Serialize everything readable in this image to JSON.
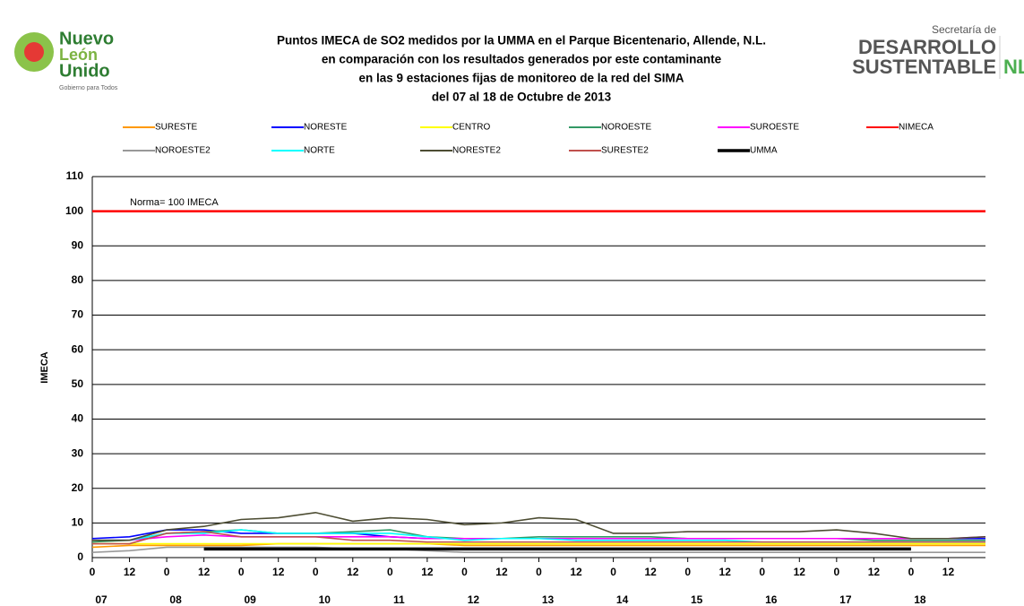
{
  "logos": {
    "left": [
      "Nuevo",
      "León",
      "Unido",
      "Gobierno para Todos"
    ],
    "right": [
      "Secretaría de",
      "DESARROLLO",
      "SUSTENTABLE",
      "NL"
    ]
  },
  "chart_data": {
    "type": "line",
    "title": [
      "Puntos IMECA de SO2 medidos por la UMMA en el Parque Bicentenario, Allende, N.L.",
      "en comparación con los resultados generados por este contaminante",
      "en las 9 estaciones fijas de monitoreo de la red del SIMA",
      "del 07 al 18 de Octubre de 2013"
    ],
    "y_label": "IMECA",
    "annotation": "Norma= 100 IMECA",
    "x": [
      0,
      12,
      24,
      36,
      48,
      60,
      72,
      84,
      96,
      108,
      120,
      132,
      144,
      156,
      168,
      180,
      192,
      204,
      216,
      228,
      240,
      252,
      264,
      276,
      288
    ],
    "xlim": [
      0,
      288
    ],
    "xticks": [
      {
        "value": 0,
        "label": "0"
      },
      12,
      {
        "value": 24,
        "label": "0"
      },
      {
        "value": 36,
        "label": "12"
      },
      {
        "value": 48,
        "label": "0"
      },
      {
        "value": 60,
        "label": "12"
      },
      {
        "value": 72,
        "label": "0"
      },
      {
        "value": 84,
        "label": "12"
      },
      {
        "value": 96,
        "label": "0"
      },
      {
        "value": 108,
        "label": "12"
      },
      {
        "value": 120,
        "label": "0"
      },
      {
        "value": 132,
        "label": "12"
      },
      {
        "value": 144,
        "label": "0"
      },
      {
        "value": 156,
        "label": "12"
      },
      {
        "value": 168,
        "label": "0"
      },
      {
        "value": 180,
        "label": "12"
      },
      {
        "value": 192,
        "label": "0"
      },
      {
        "value": 204,
        "label": "12"
      },
      {
        "value": 216,
        "label": "0"
      },
      {
        "value": 228,
        "label": "12"
      },
      {
        "value": 240,
        "label": "0"
      },
      {
        "value": 252,
        "label": "12"
      },
      {
        "value": 264,
        "label": "0"
      },
      {
        "value": 276,
        "label": "12"
      }
    ],
    "day_labels": [
      {
        "value": 0,
        "label": "07"
      },
      {
        "value": 24,
        "label": "08"
      },
      {
        "value": 48,
        "label": "09"
      },
      {
        "value": 72,
        "label": "10"
      },
      {
        "value": 96,
        "label": "11"
      },
      {
        "value": 120,
        "label": "12"
      },
      {
        "value": 144,
        "label": "13"
      },
      {
        "value": 168,
        "label": "14"
      },
      {
        "value": 192,
        "label": "15"
      },
      {
        "value": 216,
        "label": "16"
      },
      {
        "value": 240,
        "label": "17"
      },
      {
        "value": 264,
        "label": "18"
      }
    ],
    "ylim": [
      0,
      110
    ],
    "yticks": [
      0,
      10,
      20,
      30,
      40,
      50,
      60,
      70,
      80,
      90,
      100,
      110
    ],
    "grid": true,
    "series": [
      {
        "name": "SURESTE",
        "color": "#ff9900",
        "values": [
          3,
          3.5,
          3.5,
          3.5,
          3.5,
          4,
          4,
          4,
          4,
          4,
          3.5,
          3.5,
          3.5,
          3.5,
          3.5,
          3.5,
          3.5,
          3.5,
          3.5,
          3.5,
          3.5,
          3.5,
          3.5,
          3.5,
          3.5
        ]
      },
      {
        "name": "NORESTE",
        "color": "#0000ff",
        "values": [
          5.5,
          6,
          8,
          8,
          7,
          7,
          7,
          7,
          6,
          5.5,
          5.5,
          5.5,
          5.5,
          5.5,
          5.5,
          5.5,
          5.5,
          5.5,
          5.5,
          5.5,
          5.5,
          5.5,
          5.5,
          5.5,
          5.5
        ]
      },
      {
        "name": "CENTRO",
        "color": "#ffff00",
        "values": [
          4,
          4,
          4,
          4,
          4,
          4,
          4,
          4,
          4,
          4,
          4,
          4,
          4,
          4,
          4,
          4,
          4,
          4,
          4,
          4,
          4,
          4,
          4,
          4,
          4
        ]
      },
      {
        "name": "NOROESTE",
        "color": "#339966",
        "values": [
          4.5,
          5,
          7,
          7.5,
          8,
          7,
          7,
          7.5,
          8,
          6,
          5.5,
          5.5,
          6,
          6,
          6,
          6,
          5.5,
          5.5,
          5.5,
          5.5,
          5.5,
          5,
          5,
          5,
          5
        ]
      },
      {
        "name": "SUROESTE",
        "color": "#ff00ff",
        "values": [
          5,
          5,
          6,
          6.5,
          6,
          6,
          6,
          6,
          6,
          5.5,
          5.5,
          5.5,
          5.5,
          5.5,
          5.5,
          5.5,
          5.5,
          5.5,
          5.5,
          5.5,
          5.5,
          5.5,
          5.5,
          5.5,
          6
        ]
      },
      {
        "name": "NIMECA",
        "color": "#ff0000",
        "values": [
          100,
          100,
          100,
          100,
          100,
          100,
          100,
          100,
          100,
          100,
          100,
          100,
          100,
          100,
          100,
          100,
          100,
          100,
          100,
          100,
          100,
          100,
          100,
          100,
          100
        ]
      },
      {
        "name": "NOROESTE2",
        "color": "#999999",
        "values": [
          1.5,
          2,
          3,
          3,
          3,
          3,
          3,
          2.5,
          2.5,
          2,
          1.5,
          1.5,
          1.5,
          1.5,
          1.5,
          1.5,
          1.5,
          1.5,
          1.5,
          1.5,
          1.5,
          1.5,
          1.5,
          1.5,
          1.5
        ]
      },
      {
        "name": "NORTE",
        "color": "#00ffff",
        "values": [
          5,
          5,
          7,
          7,
          8,
          7,
          7,
          7,
          7,
          6,
          5,
          5.5,
          5.5,
          5,
          5,
          5,
          5,
          5,
          4.5,
          4.5,
          4.5,
          4.5,
          4.5,
          4.5,
          4.5
        ]
      },
      {
        "name": "NORESTE2",
        "color": "#4d4d33",
        "values": [
          5,
          5,
          8,
          9,
          11,
          11.5,
          13,
          10.5,
          11.5,
          11,
          9.5,
          10,
          11.5,
          11,
          7,
          7,
          7.5,
          7.5,
          7.5,
          7.5,
          8,
          7,
          5.5,
          5.5,
          6
        ]
      },
      {
        "name": "SURESTE2",
        "color": "#c0504d",
        "values": [
          4,
          4,
          7,
          7.5,
          6,
          6,
          6,
          5,
          5,
          4.5,
          4.5,
          4.5,
          4.5,
          4.5,
          4.5,
          4.5,
          4.5,
          4.5,
          4.5,
          4.5,
          4.5,
          4.5,
          4.5,
          4.5,
          4.5
        ]
      },
      {
        "name": "UMMA",
        "color": "#000000",
        "values": [
          null,
          null,
          null,
          2.5,
          2.5,
          2.5,
          2.5,
          2.5,
          2.5,
          2.5,
          2.5,
          2.5,
          2.5,
          2.5,
          2.5,
          2.5,
          2.5,
          2.5,
          2.5,
          2.5,
          2.5,
          2.5,
          2.5,
          null,
          null
        ]
      }
    ]
  }
}
